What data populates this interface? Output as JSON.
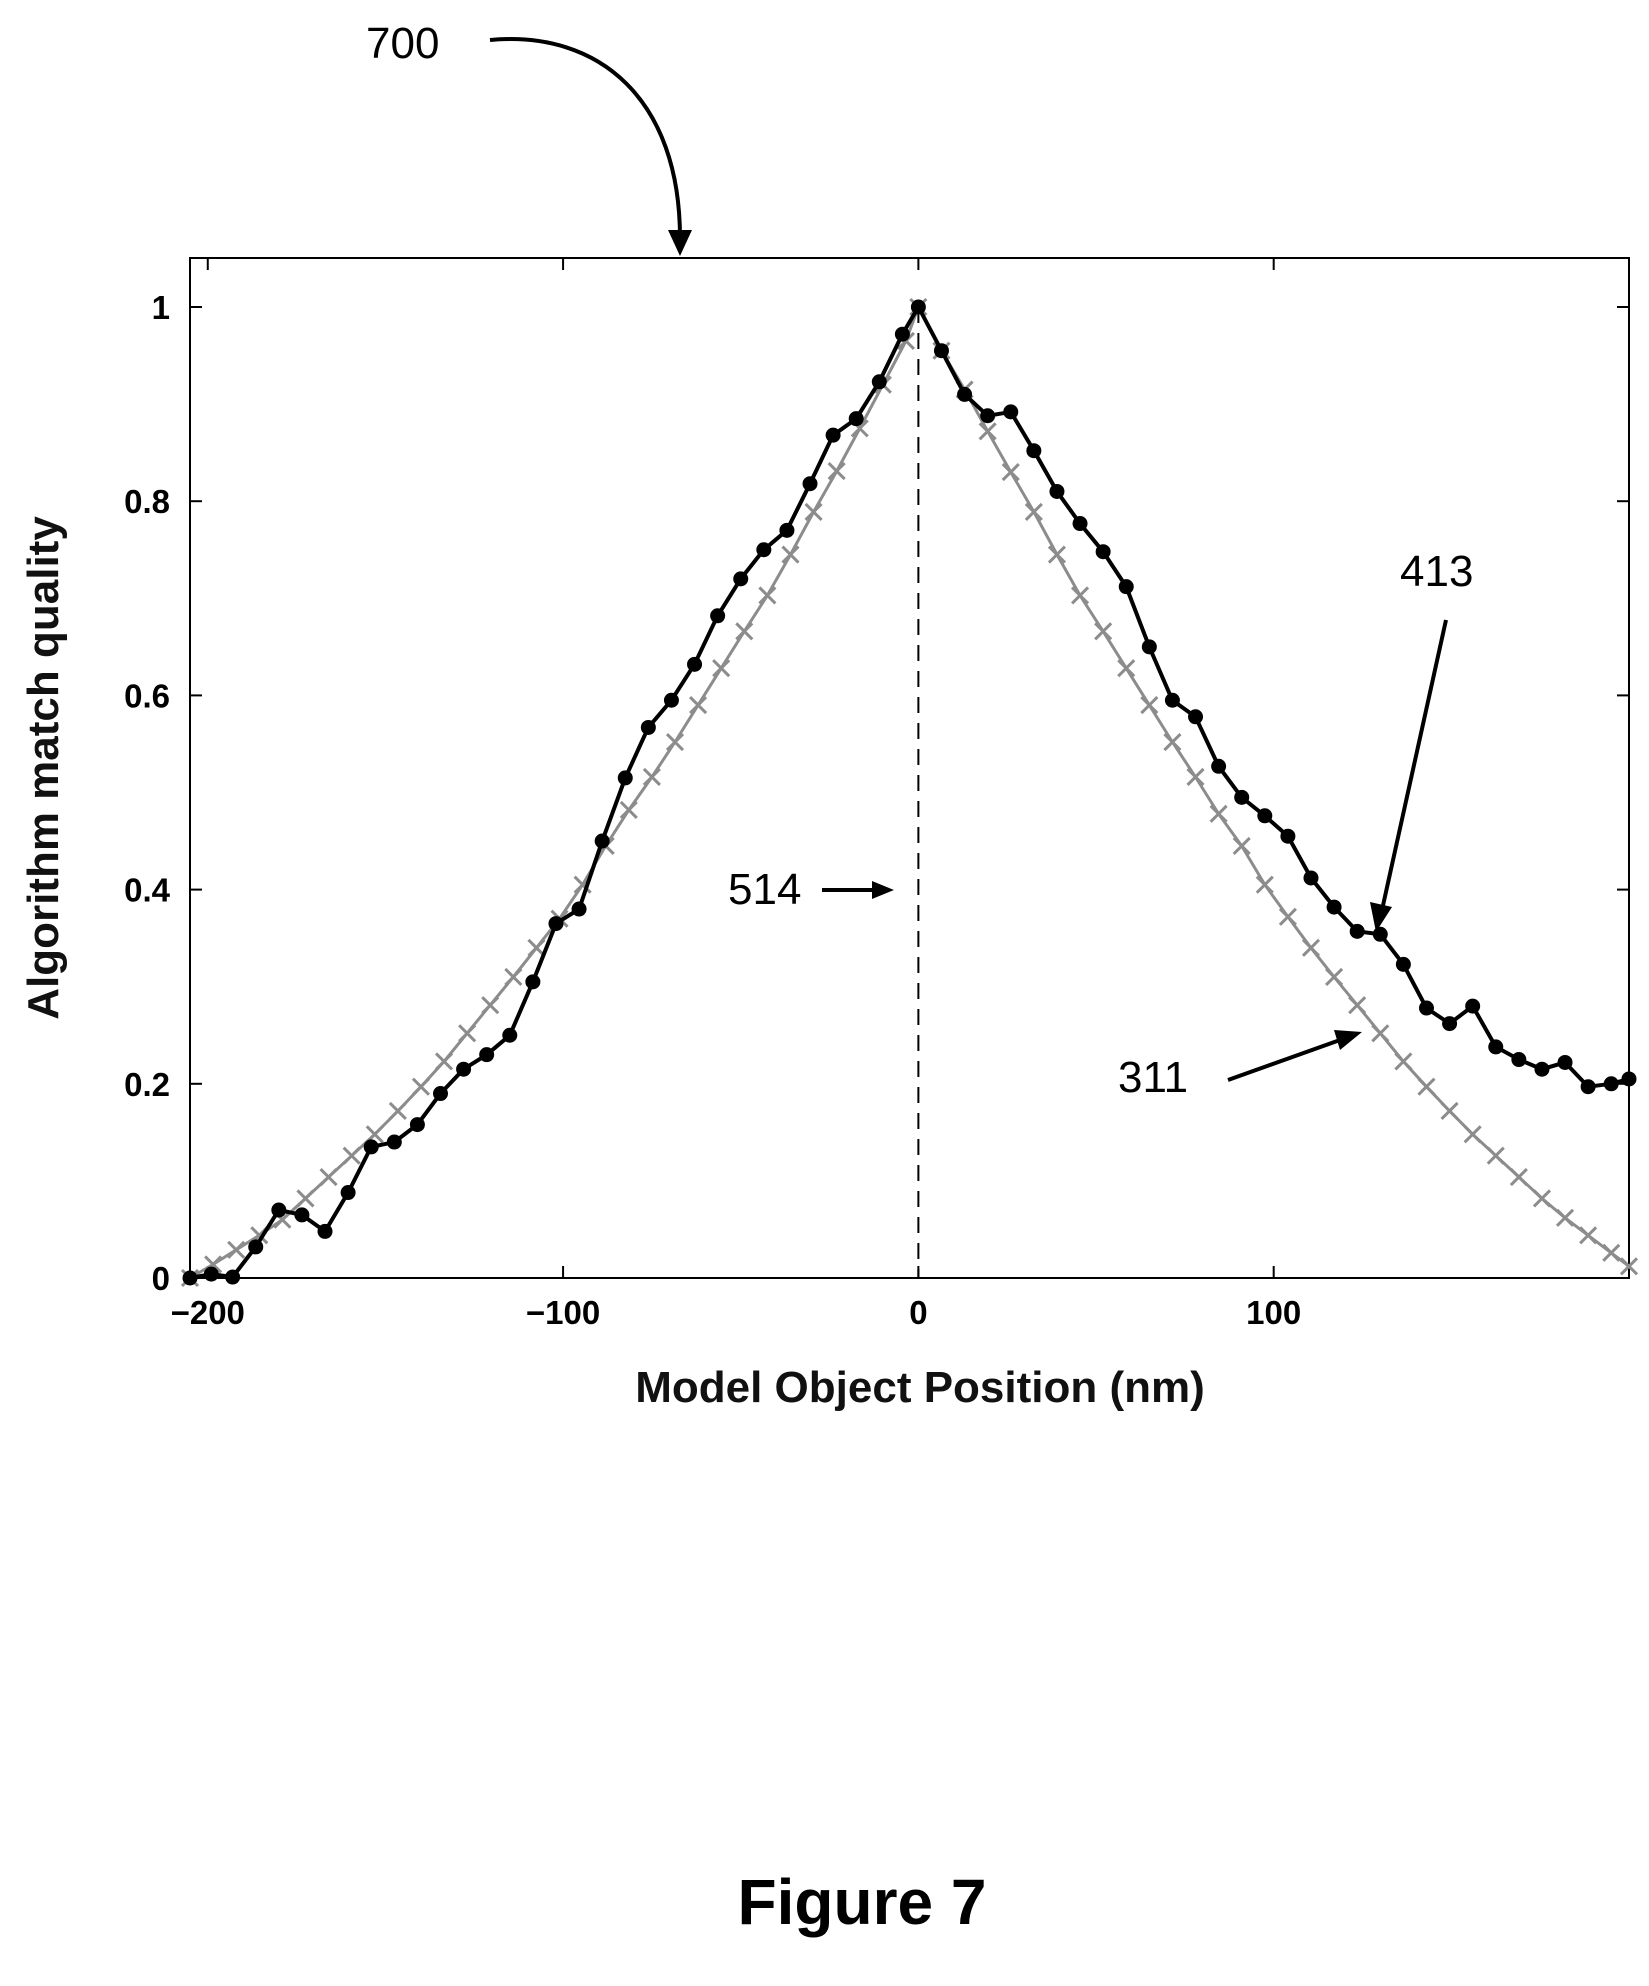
{
  "figure": {
    "caption": "Figure 7",
    "reference_numerals": {
      "figure": "700",
      "series_dots": "413",
      "series_crosses": "311",
      "center_line": "514"
    }
  },
  "chart_data": {
    "type": "line",
    "title": "",
    "xlabel": "Model Object Position (nm)",
    "ylabel": "Algorithm match quality",
    "xlim": [
      -205,
      200
    ],
    "ylim": [
      0,
      1.05
    ],
    "xticks": [
      -200,
      -100,
      0,
      100
    ],
    "xtick_labels": [
      "−200",
      "−100",
      "0",
      "100"
    ],
    "yticks": [
      0,
      0.2,
      0.4,
      0.6,
      0.8,
      1
    ],
    "ytick_labels": [
      "0",
      "0.2",
      "0.4",
      "0.6",
      "0.8",
      "1"
    ],
    "grid": false,
    "vertical_reference_line": {
      "x": 0,
      "style": "dashed"
    },
    "series": [
      {
        "marker": "x",
        "color": "#8c8c8c",
        "x": [
          -205,
          -198.5,
          -192,
          -185.5,
          -179,
          -172.5,
          -166,
          -159.5,
          -153,
          -146.5,
          -140,
          -133.5,
          -127,
          -120.5,
          -114,
          -107.5,
          -101,
          -94.5,
          -88,
          -81.5,
          -75,
          -68.5,
          -62,
          -55.5,
          -49,
          -42.5,
          -36,
          -29.5,
          -23,
          -16.5,
          -10,
          -3.5,
          0,
          6.5,
          13,
          19.5,
          26,
          32.5,
          39,
          45.5,
          52,
          58.5,
          65,
          71.5,
          78,
          84.5,
          91,
          97.5,
          104,
          110.5,
          117,
          123.5,
          130,
          136.5,
          143,
          149.5,
          156,
          162.5,
          169,
          175.5,
          182,
          188.5,
          195,
          200
        ],
        "y": [
          0.0,
          0.014,
          0.029,
          0.044,
          0.06,
          0.082,
          0.104,
          0.126,
          0.148,
          0.172,
          0.197,
          0.223,
          0.252,
          0.281,
          0.31,
          0.34,
          0.37,
          0.405,
          0.445,
          0.482,
          0.516,
          0.552,
          0.59,
          0.628,
          0.666,
          0.703,
          0.745,
          0.789,
          0.831,
          0.875,
          0.92,
          0.965,
          1.0,
          0.955,
          0.915,
          0.872,
          0.83,
          0.789,
          0.745,
          0.703,
          0.666,
          0.628,
          0.59,
          0.552,
          0.516,
          0.478,
          0.445,
          0.405,
          0.372,
          0.34,
          0.31,
          0.281,
          0.252,
          0.223,
          0.197,
          0.172,
          0.148,
          0.126,
          0.104,
          0.082,
          0.062,
          0.044,
          0.026,
          0.012
        ]
      },
      {
        "marker": "o",
        "color": "#000000",
        "x": [
          -205,
          -199,
          -193,
          -186.5,
          -180,
          -173.5,
          -167,
          -160.5,
          -154,
          -147.5,
          -141,
          -134.5,
          -128,
          -121.5,
          -115,
          -108.5,
          -102,
          -95.5,
          -89,
          -82.5,
          -76,
          -69.5,
          -63,
          -56.5,
          -50,
          -43.5,
          -37,
          -30.5,
          -24,
          -17.5,
          -11,
          -4.5,
          0,
          6.5,
          13,
          19.5,
          26,
          32.5,
          39,
          45.5,
          52,
          58.5,
          65,
          71.5,
          78,
          84.5,
          91,
          97.5,
          104,
          110.5,
          117,
          123.5,
          130,
          136.5,
          143,
          149.5,
          156,
          162.5,
          169,
          175.5,
          182,
          188.5,
          195,
          200
        ],
        "y": [
          0.0,
          0.004,
          0.001,
          0.032,
          0.07,
          0.065,
          0.048,
          0.088,
          0.135,
          0.14,
          0.158,
          0.19,
          0.215,
          0.23,
          0.25,
          0.305,
          0.365,
          0.38,
          0.45,
          0.515,
          0.567,
          0.595,
          0.632,
          0.682,
          0.72,
          0.75,
          0.77,
          0.818,
          0.868,
          0.885,
          0.923,
          0.972,
          1.0,
          0.955,
          0.91,
          0.888,
          0.892,
          0.852,
          0.81,
          0.777,
          0.748,
          0.712,
          0.65,
          0.595,
          0.578,
          0.527,
          0.495,
          0.476,
          0.455,
          0.412,
          0.382,
          0.357,
          0.354,
          0.323,
          0.278,
          0.262,
          0.28,
          0.238,
          0.225,
          0.215,
          0.222,
          0.197,
          0.2,
          0.205
        ]
      }
    ]
  }
}
